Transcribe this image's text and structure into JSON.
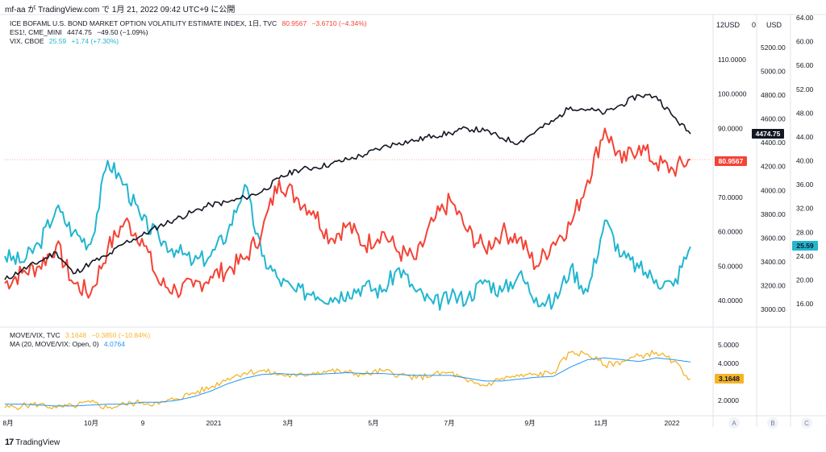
{
  "header": {
    "text": "mf-aa が TradingView.com で 1月 21, 2022 09:42 UTC+9 に公開"
  },
  "legend_main": {
    "move": {
      "name": "ICE BOFAML U.S. BOND MARKET OPTION VOLATILITY ESTIMATE INDEX, 1日, TVC",
      "value": "80.9567",
      "change": "−3.6710 (−4.34%)",
      "color": "#f44336"
    },
    "es": {
      "name": "ES1!, CME_MINI",
      "value": "4474.75",
      "change": "−49.50 (−1.09%)",
      "color": "#131722"
    },
    "vix": {
      "name": "VIX, CBOE",
      "value": "25.59",
      "change": "+1.74 (+7.30%)",
      "color": "#22b6d0"
    }
  },
  "legend_sub": {
    "ratio": {
      "name": "MOVE/VIX, TVC",
      "value": "3.1648",
      "change": "−0.3850 (−10.84%)",
      "color": "#f5b428"
    },
    "ma": {
      "name": "MA (20, MOVE/VIX: Open, 0)",
      "value": "4.0764",
      "color": "#2196f3"
    }
  },
  "scales": {
    "a_unit": "USD",
    "b_unit": "USD",
    "a_top_label": "12",
    "a_top_partial": "0",
    "a_ticks": [
      "110.0000",
      "100.0000",
      "90.0000",
      "80.0000",
      "70.0000",
      "60.0000",
      "50.0000",
      "40.0000"
    ],
    "b_ticks": [
      "5200.00",
      "5000.00",
      "4800.00",
      "4600.00",
      "4400.00",
      "4200.00",
      "4000.00",
      "3800.00",
      "3600.00",
      "3400.00",
      "3200.00",
      "3000.00"
    ],
    "c_ticks": [
      "64.00",
      "60.00",
      "56.00",
      "52.00",
      "48.00",
      "44.00",
      "40.00",
      "36.00",
      "32.00",
      "28.00",
      "24.00",
      "20.00",
      "16.00"
    ],
    "sub_ticks": [
      "5.0000",
      "4.0000",
      "2.0000"
    ],
    "scale_letters": [
      "A",
      "B",
      "C"
    ]
  },
  "x_labels": [
    "8月",
    "10月",
    "9",
    "2021",
    "3月",
    "5月",
    "7月",
    "9月",
    "11月",
    "2022"
  ],
  "badges": {
    "es": {
      "text": "4474.75",
      "bg": "#131722",
      "fg": "#ffffff"
    },
    "move": {
      "text": "80.9567",
      "bg": "#f44336",
      "fg": "#ffffff"
    },
    "vix": {
      "text": "25.59",
      "bg": "#22b6d0",
      "fg": "#131722"
    },
    "ratio": {
      "text": "3.1648",
      "bg": "#f5b428",
      "fg": "#131722"
    }
  },
  "brand": "TradingView",
  "chart_data": {
    "type": "line",
    "date_range": [
      "2020-08",
      "2022-01-21"
    ],
    "series": [
      {
        "name": "ES1!, CME_MINI",
        "axis": "B (3000–5200)",
        "color": "#131722",
        "values": [
          3250,
          3330,
          3400,
          3480,
          3300,
          3390,
          3450,
          3560,
          3620,
          3700,
          3760,
          3820,
          3880,
          3900,
          3940,
          3990,
          4100,
          4170,
          4190,
          4220,
          4260,
          4300,
          4360,
          4400,
          4420,
          4460,
          4480,
          4520,
          4500,
          4440,
          4400,
          4500,
          4580,
          4700,
          4680,
          4650,
          4720,
          4800,
          4790,
          4620,
          4474.75
        ]
      },
      {
        "name": "ICE BOFAML U.S. BOND MARKET OPTION VOLATILITY ESTIMATE INDEX",
        "axis": "A (40–110)",
        "color": "#f44336",
        "values": [
          45,
          48,
          50,
          56,
          45,
          42,
          55,
          63,
          58,
          45,
          43,
          44,
          47,
          49,
          52,
          60,
          75,
          70,
          66,
          58,
          62,
          56,
          60,
          54,
          52,
          63,
          69,
          60,
          55,
          60,
          58,
          50,
          57,
          62,
          75,
          90,
          80,
          85,
          80,
          78,
          80.9567
        ]
      },
      {
        "name": "VIX, CBOE",
        "axis": "C (16–64)",
        "color": "#22b6d0",
        "values": [
          24,
          23,
          26,
          32,
          28,
          26,
          40,
          36,
          30,
          27,
          25,
          23,
          24,
          28,
          36,
          24,
          20,
          18,
          18,
          17,
          18,
          19,
          18,
          22,
          18,
          16,
          17,
          17,
          20,
          18,
          21,
          17,
          16,
          22,
          18,
          30,
          24,
          22,
          20,
          19,
          25.59
        ]
      },
      {
        "name": "MOVE/VIX, TVC",
        "axis": "sub (2–5)",
        "color": "#f5b428",
        "values": [
          1.6,
          1.7,
          1.8,
          1.6,
          1.7,
          1.9,
          1.6,
          1.8,
          1.9,
          1.8,
          2.1,
          2.4,
          2.7,
          3.2,
          3.5,
          3.6,
          3.4,
          3.3,
          3.5,
          3.6,
          3.5,
          3.4,
          3.6,
          3.4,
          3.2,
          3.4,
          3.5,
          3.0,
          2.8,
          3.2,
          3.3,
          3.4,
          3.5,
          4.6,
          4.5,
          3.9,
          4.1,
          4.4,
          4.6,
          4.1,
          3.1648
        ]
      },
      {
        "name": "MA (20, MOVE/VIX: Open, 0)",
        "axis": "sub (2–5)",
        "color": "#2196f3",
        "values": [
          1.8,
          1.8,
          1.75,
          1.7,
          1.7,
          1.75,
          1.8,
          1.8,
          1.9,
          1.9,
          2.0,
          2.2,
          2.5,
          2.9,
          3.2,
          3.4,
          3.45,
          3.4,
          3.4,
          3.45,
          3.5,
          3.45,
          3.45,
          3.4,
          3.35,
          3.35,
          3.35,
          3.2,
          3.05,
          3.05,
          3.15,
          3.25,
          3.3,
          3.8,
          4.2,
          4.3,
          4.2,
          4.1,
          4.3,
          4.2,
          4.0764
        ]
      }
    ],
    "grid": false
  }
}
